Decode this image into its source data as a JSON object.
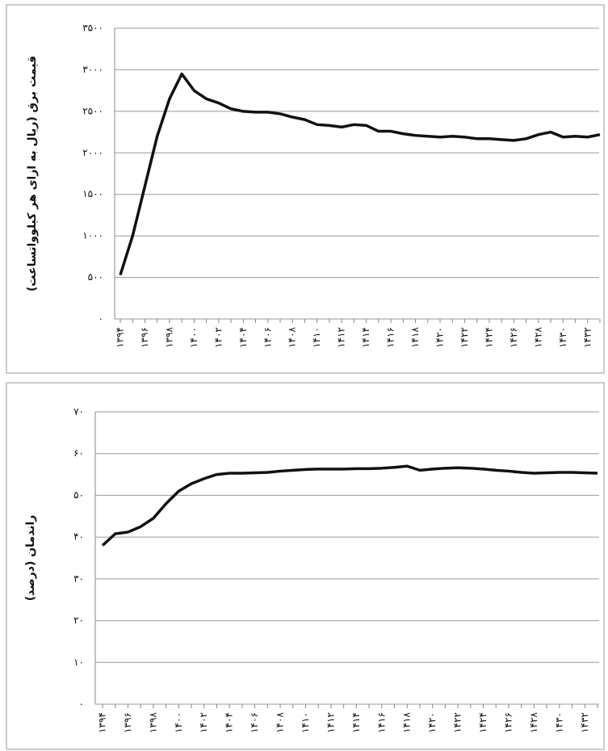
{
  "chart_data": [
    {
      "type": "line",
      "y_label": "قیمت برق (ریال به ازای هر کیلوواتساعت)",
      "categories": [
        "۱۳۹۴",
        null,
        "۱۳۹۶",
        null,
        "۱۳۹۸",
        null,
        "۱۴۰۰",
        null,
        "۱۴۰۲",
        null,
        "۱۴۰۴",
        null,
        "۱۴۰۶",
        null,
        "۱۴۰۸",
        null,
        "۱۴۱۰",
        null,
        "۱۴۱۲",
        null,
        "۱۴۱۴",
        null,
        "۱۴۱۶",
        null,
        "۱۴۱۸",
        null,
        "۱۴۲۰",
        null,
        "۱۴۲۲",
        null,
        "۱۴۲۴",
        null,
        "۱۴۲۶",
        null,
        "۱۴۲۸",
        null,
        "۱۴۳۰",
        null,
        "۱۴۳۲",
        null
      ],
      "values": [
        530,
        1000,
        1600,
        2200,
        2650,
        2950,
        2750,
        2650,
        2600,
        2530,
        2500,
        2490,
        2490,
        2470,
        2430,
        2400,
        2340,
        2330,
        2310,
        2340,
        2330,
        2260,
        2260,
        2230,
        2210,
        2200,
        2190,
        2200,
        2190,
        2170,
        2170,
        2160,
        2150,
        2170,
        2220,
        2250,
        2190,
        2200,
        2190,
        2220
      ],
      "color": "#111111",
      "ylim": [
        0,
        3500
      ],
      "yticks": [
        {
          "value": 0,
          "label": "۰"
        },
        {
          "value": 500,
          "label": "۵۰۰"
        },
        {
          "value": 1000,
          "label": "۱۰۰۰"
        },
        {
          "value": 1500,
          "label": "۱۵۰۰"
        },
        {
          "value": 2000,
          "label": "۲۰۰۰"
        },
        {
          "value": 2500,
          "label": "۲۵۰۰"
        },
        {
          "value": 3000,
          "label": "۳۰۰۰"
        },
        {
          "value": 3500,
          "label": "۳۵۰۰"
        }
      ],
      "grid": true
    },
    {
      "type": "line",
      "y_label": "راندمان (درصد)",
      "categories": [
        "۱۳۹۴",
        null,
        "۱۳۹۶",
        null,
        "۱۳۹۸",
        null,
        "۱۴۰۰",
        null,
        "۱۴۰۲",
        null,
        "۱۴۰۴",
        null,
        "۱۴۰۶",
        null,
        "۱۴۰۸",
        null,
        "۱۴۱۰",
        null,
        "۱۴۱۲",
        null,
        "۱۴۱۴",
        null,
        "۱۴۱۶",
        null,
        "۱۴۱۸",
        null,
        "۱۴۲۰",
        null,
        "۱۴۲۲",
        null,
        "۱۴۲۴",
        null,
        "۱۴۲۶",
        null,
        "۱۴۲۸",
        null,
        "۱۴۳۰",
        null,
        "۱۴۳۲",
        null
      ],
      "values": [
        38,
        40.8,
        41.2,
        42.5,
        44.5,
        48,
        51,
        52.8,
        54,
        55,
        55.3,
        55.3,
        55.4,
        55.5,
        55.8,
        56,
        56.2,
        56.3,
        56.3,
        56.3,
        56.4,
        56.4,
        56.5,
        56.7,
        57,
        56,
        56.3,
        56.5,
        56.6,
        56.5,
        56.3,
        56,
        55.8,
        55.5,
        55.3,
        55.4,
        55.5,
        55.5,
        55.4,
        55.3
      ],
      "color": "#111111",
      "ylim": [
        0,
        70
      ],
      "yticks": [
        {
          "value": 0,
          "label": "۰"
        },
        {
          "value": 10,
          "label": "۱۰"
        },
        {
          "value": 20,
          "label": "۲۰"
        },
        {
          "value": 30,
          "label": "۳۰"
        },
        {
          "value": 40,
          "label": "۴۰"
        },
        {
          "value": 50,
          "label": "۵۰"
        },
        {
          "value": 60,
          "label": "۶۰"
        },
        {
          "value": 70,
          "label": "۷۰"
        }
      ],
      "grid": true
    }
  ]
}
